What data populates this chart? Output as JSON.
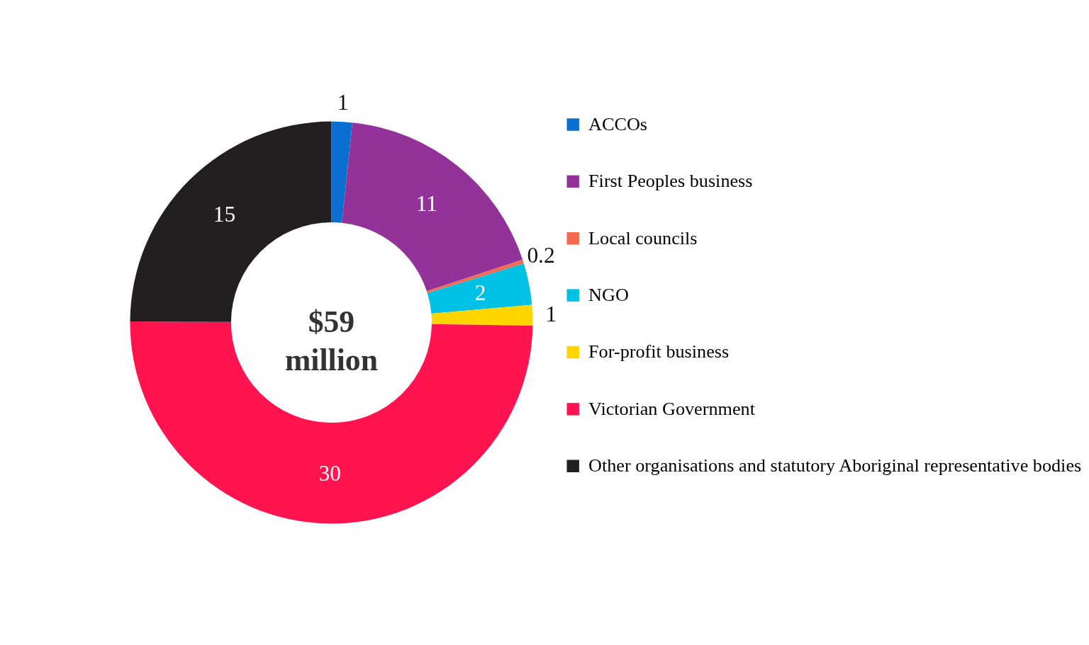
{
  "chart_data": {
    "type": "donut",
    "categories": [
      "ACCOs",
      "First Peoples business",
      "Local councils",
      "NGO",
      "For-profit business",
      "Victorian Government",
      "Other organisations and statutory Aboriginal representative bodies"
    ],
    "values": [
      1,
      11,
      0.2,
      2,
      1,
      30,
      15
    ],
    "colors": [
      "#0a6fd0",
      "#93339a",
      "#f26b50",
      "#00c0e4",
      "#ffd500",
      "#ff1450",
      "#231f20"
    ],
    "data_labels": true,
    "legend": "right",
    "annotations": [
      "$59 million"
    ]
  }
}
